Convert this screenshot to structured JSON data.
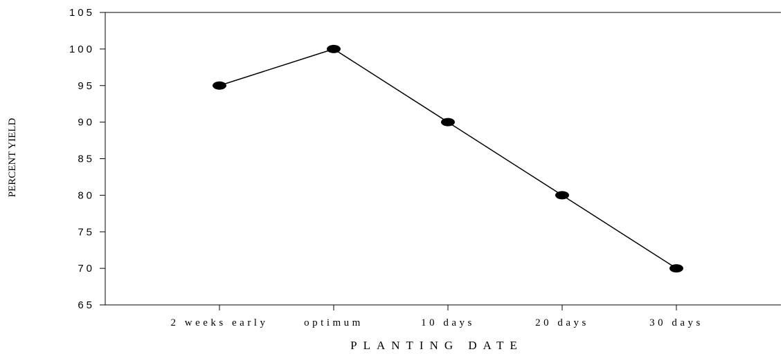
{
  "chart_data": {
    "type": "line",
    "title": "",
    "xlabel": "PLANTING DATE",
    "ylabel": "PERCENT YIELD",
    "categories": [
      "2 weeks early",
      "optimum",
      "10 days",
      "20 days",
      "30 days"
    ],
    "series": [
      {
        "values": [
          95,
          100,
          90,
          80,
          70
        ]
      }
    ],
    "ylim": [
      65,
      105
    ],
    "yticks": [
      "105",
      "100",
      "95",
      "90",
      "85",
      "80",
      "75",
      "70",
      "65"
    ],
    "grid": false,
    "legend": "none",
    "colors": {
      "line": "#000000",
      "marker": "#000000",
      "axis": "#000000"
    }
  }
}
